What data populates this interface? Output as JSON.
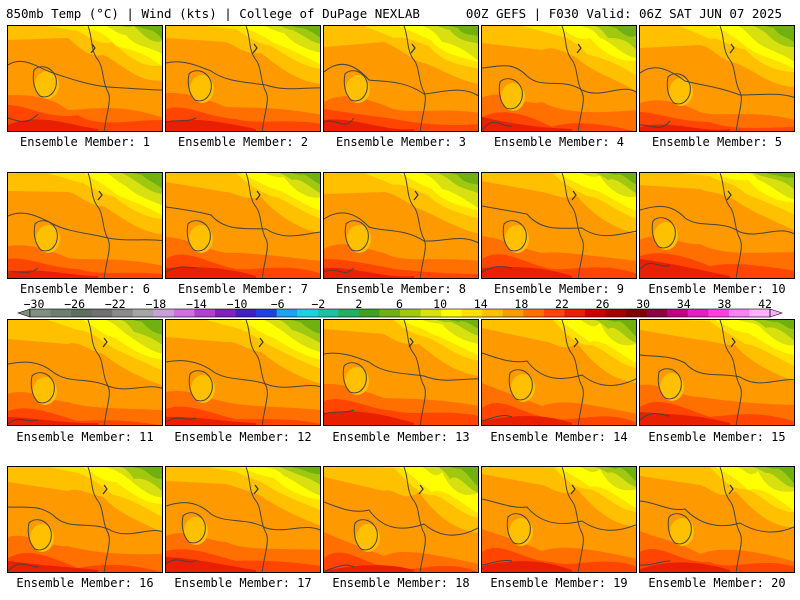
{
  "header": {
    "left": "850mb Temp (°C) | Wind (kts) | College of DuPage NEXLAB",
    "right": "00Z GEFS | F030 Valid: 06Z SAT JUN 07 2025"
  },
  "panels": [
    {
      "label": "Ensemble Member: 1"
    },
    {
      "label": "Ensemble Member: 2"
    },
    {
      "label": "Ensemble Member: 3"
    },
    {
      "label": "Ensemble Member: 4"
    },
    {
      "label": "Ensemble Member: 5"
    },
    {
      "label": "Ensemble Member: 6"
    },
    {
      "label": "Ensemble Member: 7"
    },
    {
      "label": "Ensemble Member: 8"
    },
    {
      "label": "Ensemble Member: 9"
    },
    {
      "label": "Ensemble Member: 10"
    },
    {
      "label": "Ensemble Member: 11"
    },
    {
      "label": "Ensemble Member: 12"
    },
    {
      "label": "Ensemble Member: 13"
    },
    {
      "label": "Ensemble Member: 14"
    },
    {
      "label": "Ensemble Member: 15"
    },
    {
      "label": "Ensemble Member: 16"
    },
    {
      "label": "Ensemble Member: 17"
    },
    {
      "label": "Ensemble Member: 18"
    },
    {
      "label": "Ensemble Member: 19"
    },
    {
      "label": "Ensemble Member: 20"
    }
  ],
  "colorbar": {
    "tick_labels": [
      "−30",
      "−26",
      "−22",
      "−18",
      "−14",
      "−10",
      "−6",
      "−2",
      "2",
      "6",
      "10",
      "14",
      "18",
      "22",
      "26",
      "30",
      "34",
      "38",
      "42"
    ],
    "colors": [
      "#7f8f7f",
      "#6f7f6f",
      "#5f6f5f",
      "#707070",
      "#8a8a8a",
      "#a4a4a4",
      "#c8a0d8",
      "#d070e0",
      "#b040d0",
      "#8020c0",
      "#4020c0",
      "#2040e0",
      "#20a0f0",
      "#20d0e0",
      "#20c0a0",
      "#20b060",
      "#40a020",
      "#70b010",
      "#a0c810",
      "#d8e010",
      "#ffff00",
      "#ffe000",
      "#ffc000",
      "#ff9900",
      "#ff7000",
      "#ff4500",
      "#e82000",
      "#cc0000",
      "#a00000",
      "#800000",
      "#900040",
      "#c00080",
      "#e020c0",
      "#ff40e0",
      "#ff80f0",
      "#ffb0ff"
    ]
  }
}
